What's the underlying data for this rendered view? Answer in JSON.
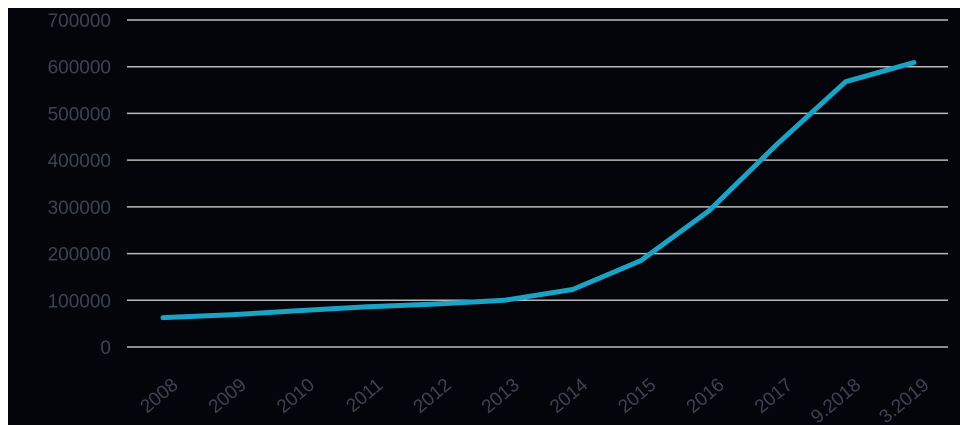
{
  "chart_data": {
    "type": "line",
    "categories": [
      "2008",
      "2009",
      "2010",
      "2011",
      "2012",
      "2013",
      "2014",
      "2015",
      "2016",
      "2017",
      "9.2018",
      "3.2019"
    ],
    "series": [
      {
        "values": [
          63000,
          69000,
          78000,
          86000,
          92000,
          100000,
          123000,
          185000,
          292000,
          435000,
          568000,
          609000
        ]
      }
    ],
    "ylim": [
      0,
      700000
    ],
    "yticks": [
      "0",
      "100000",
      "200000",
      "300000",
      "400000",
      "500000",
      "600000",
      "700000"
    ],
    "grid": true,
    "colors": {
      "background": "#04040b",
      "line": "#1ba3c6",
      "grid": "#b9b9b9",
      "text": "#3c4350"
    }
  }
}
